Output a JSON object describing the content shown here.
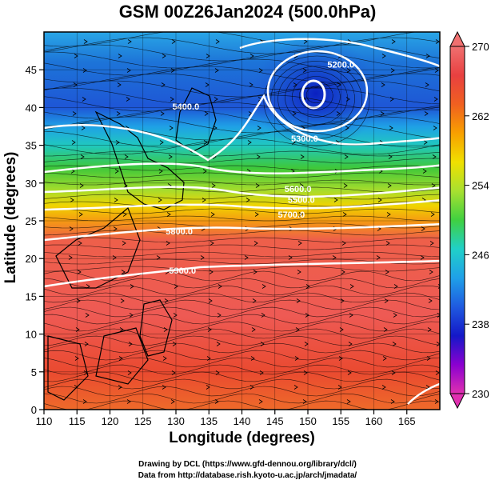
{
  "title": "GSM 00Z26Jan2024 (500.0hPa)",
  "x_axis": {
    "label": "Longitude (degrees)",
    "ticks": [
      110,
      115,
      120,
      125,
      130,
      135,
      140,
      145,
      150,
      155,
      160,
      165
    ],
    "range": [
      110,
      170
    ]
  },
  "y_axis": {
    "label": "Latitude  (degrees)",
    "ticks": [
      0,
      5,
      10,
      15,
      20,
      25,
      30,
      35,
      40,
      45
    ],
    "range": [
      0,
      50
    ]
  },
  "colorbar": {
    "ticks": [
      230,
      238,
      246,
      254,
      262,
      270
    ],
    "range": [
      230,
      270
    ],
    "colors": [
      "#e030b0",
      "#8a00d0",
      "#1418c8",
      "#1f5ae0",
      "#1fa0e8",
      "#20d0c8",
      "#40d040",
      "#a8e030",
      "#f0e000",
      "#f8a000",
      "#f06020",
      "#e84040",
      "#f07070"
    ]
  },
  "contours": [
    {
      "label": "5200.0",
      "lon": 155,
      "lat": 45.3
    },
    {
      "label": "5300.0",
      "lon": 149.5,
      "lat": 35.5
    },
    {
      "label": "5400.0",
      "lon": 131.5,
      "lat": 39.7
    },
    {
      "label": "5600.0",
      "lon": 148.5,
      "lat": 28.8
    },
    {
      "label": "5500.0",
      "lon": 149,
      "lat": 27.4
    },
    {
      "label": "5700.0",
      "lon": 147.5,
      "lat": 25.4
    },
    {
      "label": "5800.0",
      "lon": 130.5,
      "lat": 23.2
    },
    {
      "label": "5900.0",
      "lon": 131,
      "lat": 18
    }
  ],
  "credits": {
    "line1": "Drawing by DCL (https://www.gfd-dennou.org/library/dcl/)",
    "line2": "Data from http://database.rish.kyoto-u.ac.jp/arch/jmadata/"
  }
}
